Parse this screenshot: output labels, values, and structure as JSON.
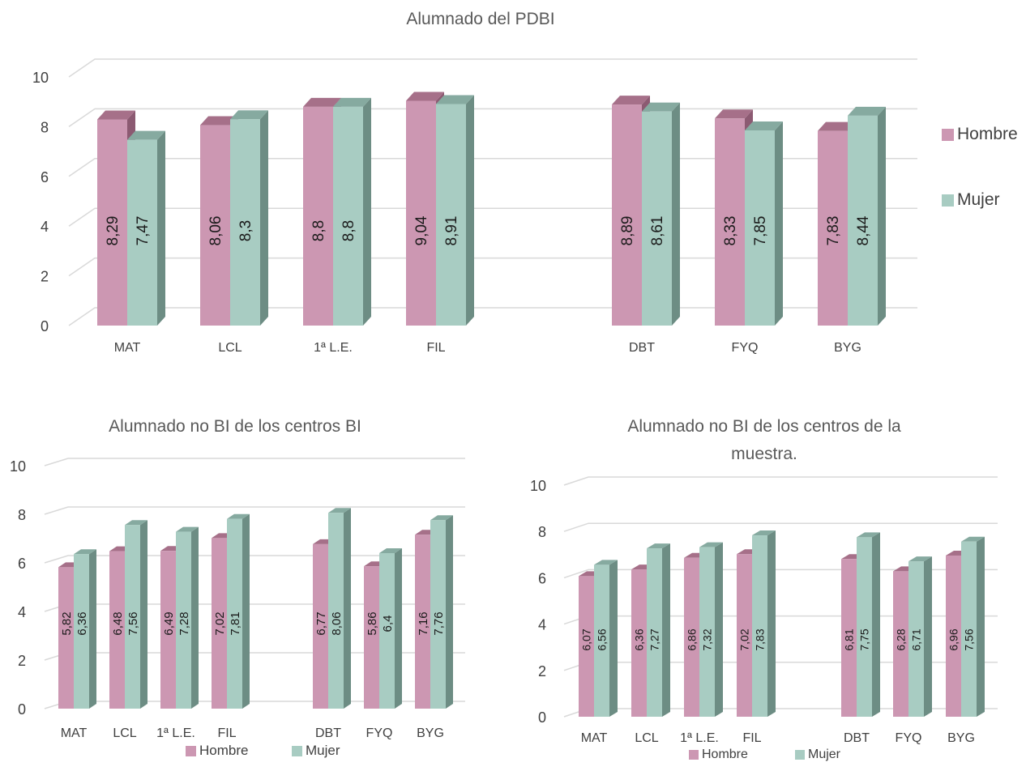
{
  "colors": {
    "hombre": "#cc97b2",
    "hombre_side": "#8c5a72",
    "hombre_top": "#a67089",
    "mujer": "#a8ccc2",
    "mujer_side": "#6d8d84",
    "mujer_top": "#86aaa0"
  },
  "chart_data": [
    {
      "type": "bar",
      "title": "Alumnado del PDBI",
      "categories": [
        "MAT",
        "LCL",
        "1ª L.E.",
        "FIL",
        "DBT",
        "FYQ",
        "BYG"
      ],
      "series": [
        {
          "name": "Hombre",
          "values": [
            8.29,
            8.06,
            8.8,
            9.04,
            8.89,
            8.33,
            7.83
          ]
        },
        {
          "name": "Mujer",
          "values": [
            7.47,
            8.3,
            8.8,
            8.91,
            8.61,
            7.85,
            8.44
          ]
        }
      ],
      "data_labels": {
        "Hombre": [
          "8,29",
          "8,06",
          "8,8",
          "9,04",
          "8,89",
          "8,33",
          "7,83"
        ],
        "Mujer": [
          "7,47",
          "8,3",
          "8,8",
          "8,91",
          "8,61",
          "7,85",
          "8,44"
        ]
      },
      "yticks": [
        "0",
        "2",
        "4",
        "6",
        "8",
        "10"
      ],
      "ylim": [
        0,
        10
      ],
      "grid": true,
      "legend": "right"
    },
    {
      "type": "bar",
      "title": "Alumnado no BI de los centros BI",
      "categories": [
        "MAT",
        "LCL",
        "1ª L.E.",
        "FIL",
        "DBT",
        "FYQ",
        "BYG"
      ],
      "series": [
        {
          "name": "Hombre",
          "values": [
            5.82,
            6.48,
            6.49,
            7.02,
            6.77,
            5.86,
            7.16
          ]
        },
        {
          "name": "Mujer",
          "values": [
            6.36,
            7.56,
            7.28,
            7.81,
            8.06,
            6.4,
            7.76
          ]
        }
      ],
      "data_labels": {
        "Hombre": [
          "5,82",
          "6,48",
          "6,49",
          "7,02",
          "6,77",
          "5,86",
          "7,16"
        ],
        "Mujer": [
          "6,36",
          "7,56",
          "7,28",
          "7,81",
          "8,06",
          "6,4",
          "7,76"
        ]
      },
      "yticks": [
        "0",
        "2",
        "4",
        "6",
        "8",
        "10"
      ],
      "ylim": [
        0,
        10
      ],
      "grid": true,
      "legend": "bottom"
    },
    {
      "type": "bar",
      "title": "Alumnado no BI de los centros de la muestra.",
      "categories": [
        "MAT",
        "LCL",
        "1ª L.E.",
        "FIL",
        "DBT",
        "FYQ",
        "BYG"
      ],
      "series": [
        {
          "name": "Hombre",
          "values": [
            6.07,
            6.36,
            6.86,
            7.02,
            6.81,
            6.28,
            6.96
          ]
        },
        {
          "name": "Mujer",
          "values": [
            6.56,
            7.27,
            7.32,
            7.83,
            7.75,
            6.71,
            7.56
          ]
        }
      ],
      "data_labels": {
        "Hombre": [
          "6,07",
          "6,36",
          "6,86",
          "7,02",
          "6,81",
          "6,28",
          "6,96"
        ],
        "Mujer": [
          "6,56",
          "7,27",
          "7,32",
          "7,83",
          "7,75",
          "6,71",
          "7,56"
        ]
      },
      "yticks": [
        "0",
        "2",
        "4",
        "6",
        "8",
        "10"
      ],
      "ylim": [
        0,
        10
      ],
      "grid": true,
      "legend": "bottom"
    }
  ]
}
